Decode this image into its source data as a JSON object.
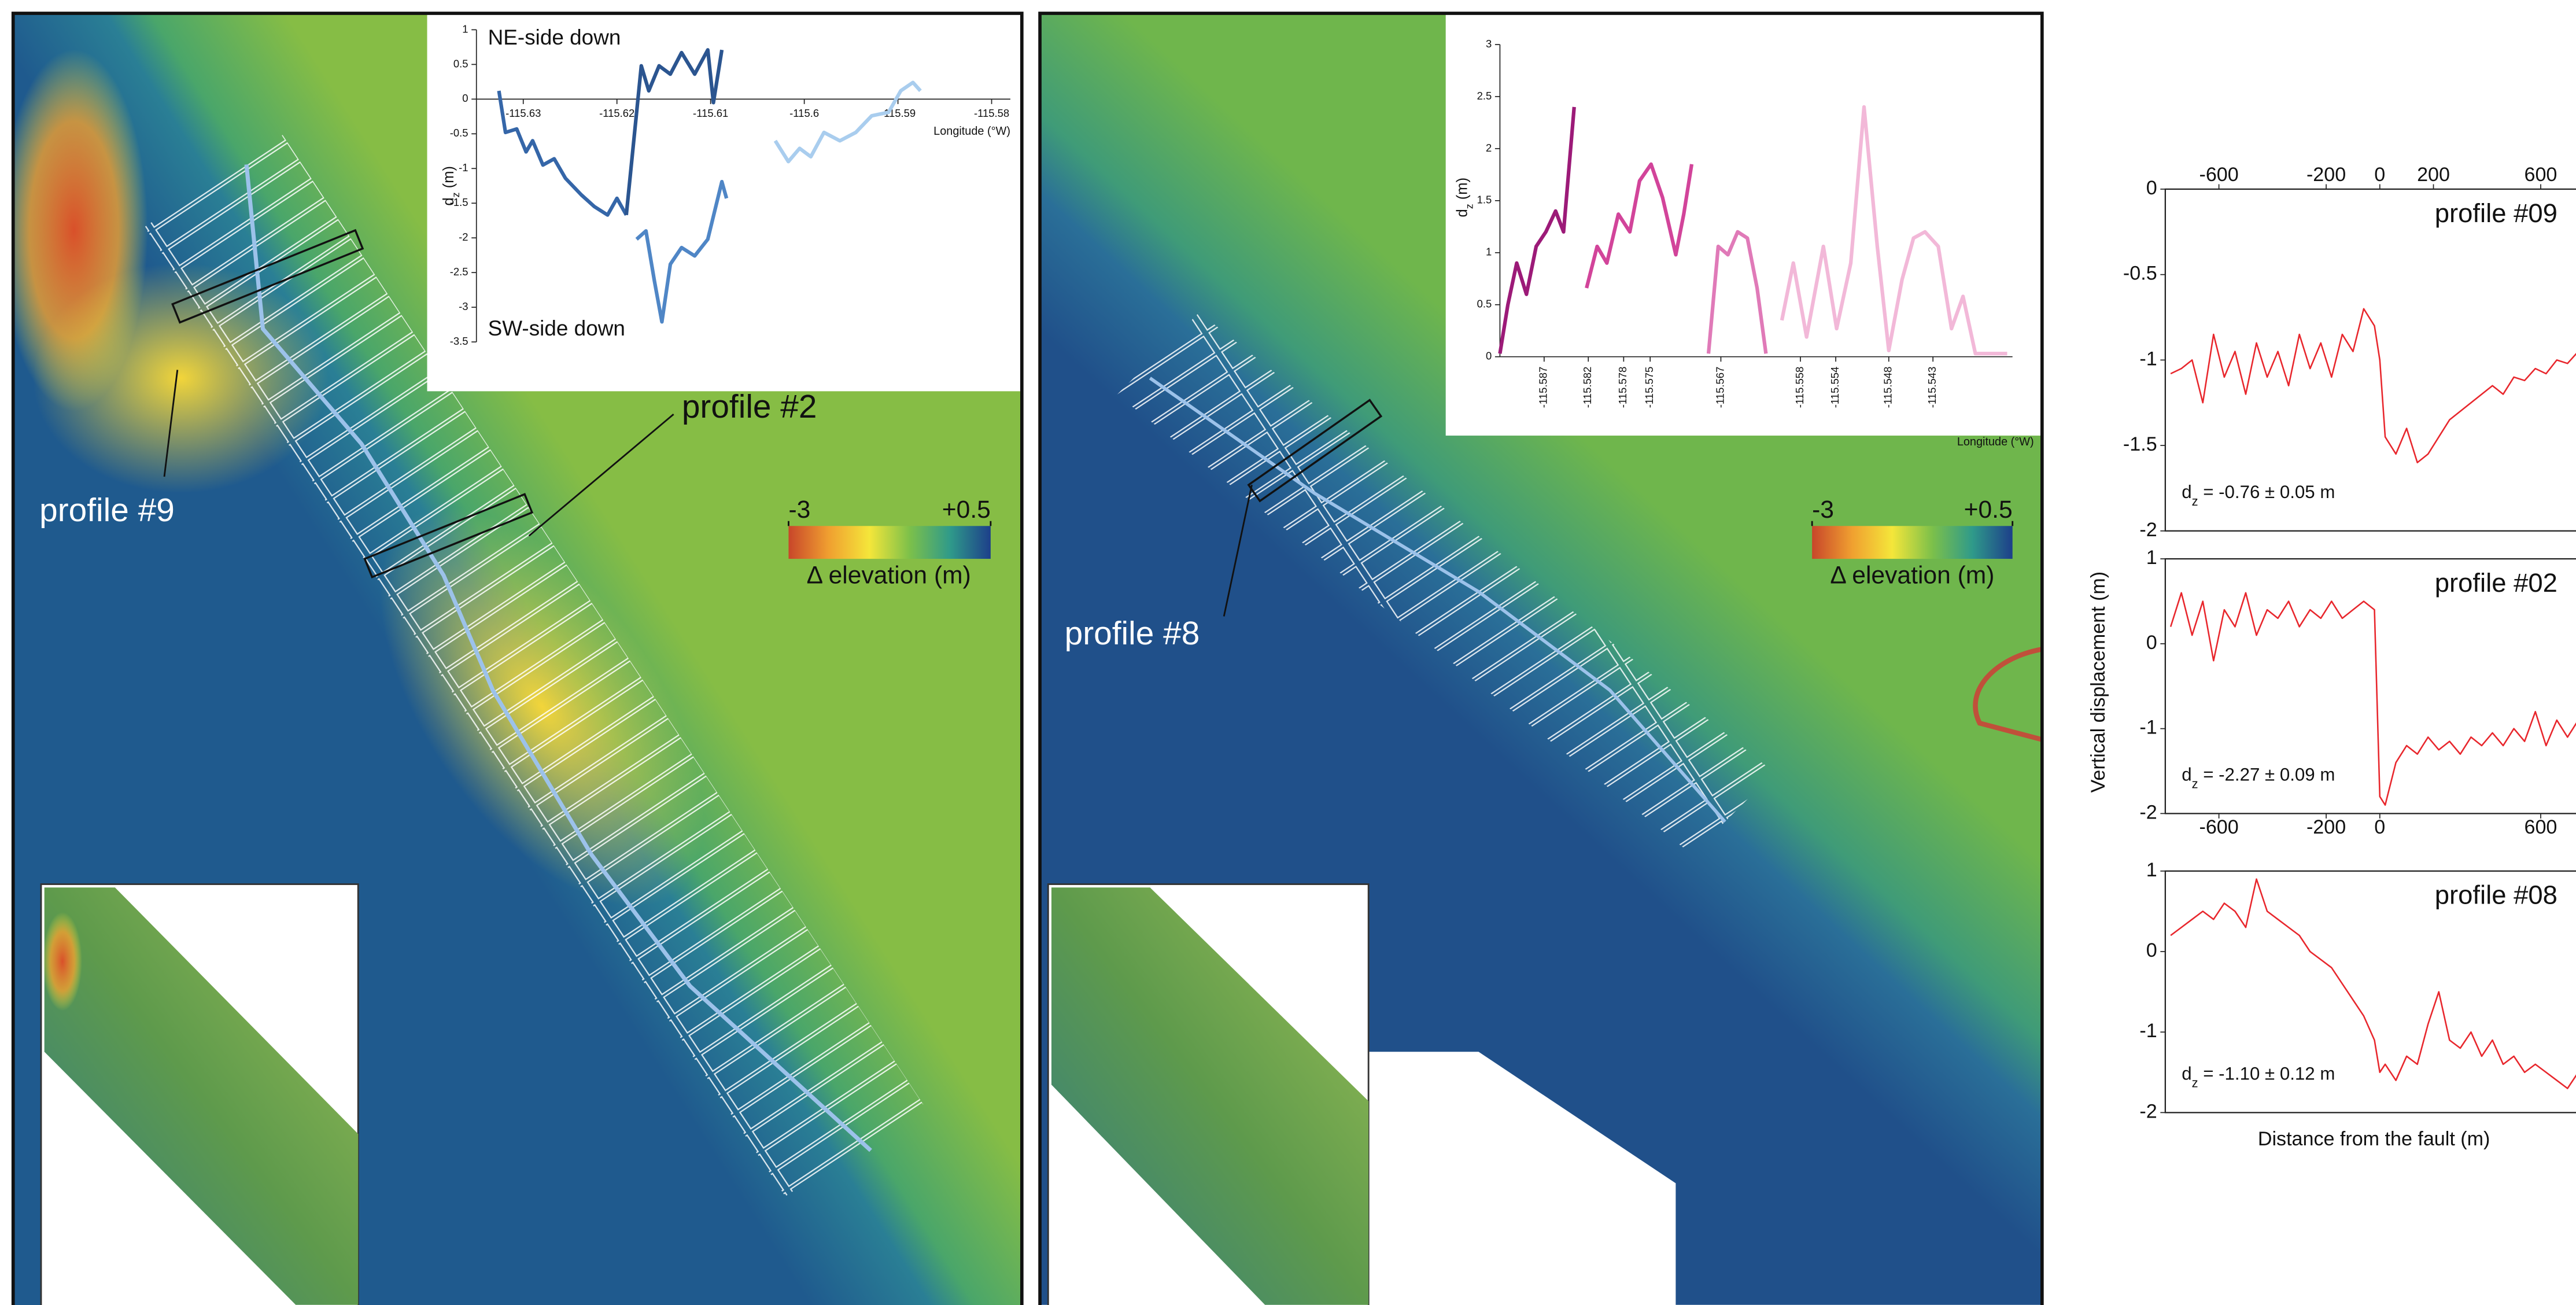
{
  "maps": [
    {
      "profile_labels": [
        "profile #9",
        "profile #2"
      ],
      "colorbar": {
        "ticks": [
          -3,
          {
            "value": 0.5,
            "label": "+0.5"
          }
        ],
        "label": "Δ elevation (m)"
      }
    },
    {
      "profile_labels": [
        "profile #8"
      ],
      "colorbar": {
        "ticks": [
          -3,
          {
            "value": 0.5,
            "label": "+0.5"
          }
        ],
        "label": "Δ elevation (m)"
      }
    }
  ],
  "chart_data": [
    {
      "type": "line",
      "xlabel": "Longitude (°W)",
      "ylabel": {
        "main": "d",
        "sub": "z",
        "unit": " (m)"
      },
      "annotations": [
        "NE-side down",
        "SW-side down"
      ],
      "xlim": [
        -115.635,
        -115.578
      ],
      "xticks": [
        -115.63,
        -115.62,
        -115.61,
        -115.6,
        -115.59,
        -115.58
      ],
      "ylim": [
        -3.5,
        1
      ],
      "yticks": [
        1,
        0.5,
        0,
        -0.5,
        -1,
        -1.5,
        -2,
        -2.5,
        -3,
        -3.5
      ],
      "xaxis": "zero",
      "series": [
        {
          "color": "#3566a8",
          "x": [
            -115.6326,
            -115.6319,
            -115.6307,
            -115.6297,
            -115.629,
            -115.6279,
            -115.6267,
            -115.6255,
            -115.6238,
            -115.6224,
            -115.621,
            -115.62,
            -115.619
          ],
          "values": [
            0.12,
            -0.48,
            -0.43,
            -0.76,
            -0.6,
            -0.95,
            -0.86,
            -1.14,
            -1.38,
            -1.55,
            -1.67,
            -1.43,
            -1.67
          ]
        },
        {
          "color": "#2b5590",
          "x": [
            -115.619,
            -115.6174,
            -115.6166,
            -115.6155,
            -115.6143,
            -115.6131,
            -115.6117,
            -115.6103,
            -115.6097,
            -115.6088
          ],
          "values": [
            -1.67,
            0.48,
            0.12,
            0.48,
            0.36,
            0.67,
            0.36,
            0.71,
            -0.05,
            0.71
          ]
        },
        {
          "color": "#4f86c6",
          "x": [
            -115.6179,
            -115.6169,
            -115.616,
            -115.6152,
            -115.6143,
            -115.6131,
            -115.6117,
            -115.6103,
            -115.6088,
            -115.6083
          ],
          "values": [
            -2.02,
            -1.9,
            -2.62,
            -3.21,
            -2.38,
            -2.14,
            -2.26,
            -2.02,
            -1.19,
            -1.43
          ]
        },
        {
          "color": "#a9cdee",
          "x": [
            -115.6031,
            -115.6017,
            -115.6005,
            -115.5993,
            -115.5979,
            -115.5962,
            -115.5945,
            -115.5928,
            -115.591,
            -115.5897,
            -115.5884,
            -115.5876
          ],
          "values": [
            -0.6,
            -0.9,
            -0.71,
            -0.83,
            -0.48,
            -0.6,
            -0.48,
            -0.24,
            -0.19,
            0.12,
            0.24,
            0.12
          ]
        }
      ]
    },
    {
      "type": "line",
      "xlabel": "Longitude (°W)",
      "ylabel": {
        "main": "d",
        "sub": "z",
        "unit": " (m)"
      },
      "xlim": [
        -115.592,
        -115.534
      ],
      "xticks": [
        -115.587,
        -115.582,
        -115.578,
        -115.575,
        -115.567,
        -115.558,
        -115.554,
        -115.548,
        -115.543
      ],
      "ylim": [
        0,
        3
      ],
      "yticks": [
        0,
        0.5,
        1,
        1.5,
        2,
        2.5,
        3
      ],
      "xaxis": "bottom",
      "series": [
        {
          "color": "#9c1a78",
          "x": [
            -115.592,
            -115.5911,
            -115.5901,
            -115.589,
            -115.5879,
            -115.5868,
            -115.5857,
            -115.5848,
            -115.5836
          ],
          "values": [
            0.03,
            0.5,
            0.9,
            0.6,
            1.06,
            1.2,
            1.4,
            1.2,
            2.4
          ]
        },
        {
          "color": "#d2449a",
          "x": [
            -115.5822,
            -115.581,
            -115.5799,
            -115.5786,
            -115.5773,
            -115.5762,
            -115.5749,
            -115.5736,
            -115.5721,
            -115.5712,
            -115.5703
          ],
          "values": [
            0.66,
            1.06,
            0.9,
            1.37,
            1.2,
            1.69,
            1.85,
            1.53,
            0.98,
            1.37,
            1.85
          ]
        },
        {
          "color": "#e07ab8",
          "x": [
            -115.5684,
            -115.5673,
            -115.5662,
            -115.5651,
            -115.564,
            -115.5629,
            -115.5619
          ],
          "values": [
            0.03,
            1.06,
            0.98,
            1.2,
            1.14,
            0.66,
            0.03
          ]
        },
        {
          "color": "#f2b8d8",
          "x": [
            -115.5601,
            -115.5588,
            -115.5573,
            -115.5554,
            -115.5539,
            -115.5523,
            -115.5508,
            -115.5493,
            -115.548,
            -115.5465,
            -115.5452,
            -115.5439,
            -115.5424,
            -115.5409,
            -115.5396,
            -115.5382,
            -115.5365,
            -115.5346
          ],
          "values": [
            0.35,
            0.9,
            0.19,
            1.06,
            0.27,
            0.9,
            2.4,
            1.06,
            0.06,
            0.74,
            1.14,
            1.2,
            1.06,
            0.27,
            0.58,
            0.03,
            0.03,
            0.03
          ]
        }
      ]
    },
    {
      "type": "line",
      "title": "profile #09",
      "annotation": {
        "main": "d",
        "sub": "z",
        "rest": " = -0.76 ± 0.05 m"
      },
      "xlim": [
        -800,
        750
      ],
      "xticks": [
        -600,
        -200,
        0,
        200,
        600
      ],
      "xaxis": "top",
      "ylim": [
        -2,
        0
      ],
      "yticks": [
        0,
        -0.5,
        -1,
        -1.5,
        -2
      ],
      "x": [
        -780,
        -740,
        -700,
        -660,
        -620,
        -580,
        -540,
        -500,
        -460,
        -420,
        -380,
        -340,
        -300,
        -260,
        -220,
        -180,
        -140,
        -100,
        -60,
        -20,
        0,
        20,
        60,
        100,
        140,
        180,
        220,
        260,
        300,
        340,
        380,
        420,
        460,
        500,
        540,
        580,
        620,
        660,
        700,
        740
      ],
      "series": [
        {
          "color": "#e8262c",
          "values": [
            -1.08,
            -1.05,
            -1.0,
            -1.25,
            -0.85,
            -1.1,
            -0.95,
            -1.2,
            -0.9,
            -1.1,
            -0.95,
            -1.15,
            -0.85,
            -1.05,
            -0.9,
            -1.1,
            -0.85,
            -0.95,
            -0.7,
            -0.8,
            -1.0,
            -1.45,
            -1.55,
            -1.4,
            -1.6,
            -1.55,
            -1.45,
            -1.35,
            -1.3,
            -1.25,
            -1.2,
            -1.15,
            -1.2,
            -1.1,
            -1.12,
            -1.05,
            -1.08,
            -1.0,
            -1.02,
            -0.95
          ]
        }
      ]
    },
    {
      "type": "line",
      "title": "profile #02",
      "annotation": {
        "main": "d",
        "sub": "z",
        "rest": " = -2.27 ± 0.09 m"
      },
      "ylabel": "Vertical displacement (m)",
      "xlim": [
        -800,
        750
      ],
      "xticks": [
        -600,
        -200,
        0,
        600
      ],
      "xaxis": "bottom",
      "ylim": [
        -2,
        1
      ],
      "yticks": [
        1,
        0,
        -1,
        -2
      ],
      "x": [
        -780,
        -740,
        -700,
        -660,
        -620,
        -580,
        -540,
        -500,
        -460,
        -420,
        -380,
        -340,
        -300,
        -260,
        -220,
        -180,
        -140,
        -100,
        -60,
        -20,
        0,
        20,
        60,
        100,
        140,
        180,
        220,
        260,
        300,
        340,
        380,
        420,
        460,
        500,
        540,
        580,
        620,
        660,
        700,
        740
      ],
      "series": [
        {
          "color": "#e8262c",
          "values": [
            0.2,
            0.6,
            0.1,
            0.5,
            -0.2,
            0.4,
            0.2,
            0.6,
            0.1,
            0.4,
            0.3,
            0.5,
            0.2,
            0.4,
            0.3,
            0.5,
            0.3,
            0.4,
            0.5,
            0.4,
            -1.8,
            -1.9,
            -1.4,
            -1.2,
            -1.3,
            -1.1,
            -1.25,
            -1.15,
            -1.3,
            -1.1,
            -1.2,
            -1.05,
            -1.2,
            -1.0,
            -1.15,
            -0.8,
            -1.2,
            -0.9,
            -1.1,
            -0.9
          ]
        }
      ]
    },
    {
      "type": "line",
      "title": "profile #08",
      "annotation": {
        "main": "d",
        "sub": "z",
        "rest": " = -1.10 ± 0.12 m"
      },
      "xlabel": "Distance from the fault (m)",
      "xlim": [
        -800,
        750
      ],
      "xaxis": "bottom",
      "ylim": [
        -2,
        1
      ],
      "yticks": [
        1,
        0,
        -1,
        -2
      ],
      "x": [
        -780,
        -740,
        -700,
        -660,
        -620,
        -580,
        -540,
        -500,
        -460,
        -420,
        -380,
        -340,
        -300,
        -260,
        -220,
        -180,
        -140,
        -100,
        -60,
        -20,
        0,
        20,
        60,
        100,
        140,
        180,
        220,
        260,
        300,
        340,
        380,
        420,
        460,
        500,
        540,
        580,
        620,
        660,
        700,
        740
      ],
      "series": [
        {
          "color": "#e8262c",
          "values": [
            0.2,
            0.3,
            0.4,
            0.5,
            0.4,
            0.6,
            0.5,
            0.3,
            0.9,
            0.5,
            0.4,
            0.3,
            0.2,
            0.0,
            -0.1,
            -0.2,
            -0.4,
            -0.6,
            -0.8,
            -1.1,
            -1.5,
            -1.4,
            -1.6,
            -1.3,
            -1.4,
            -0.9,
            -0.5,
            -1.1,
            -1.2,
            -1.0,
            -1.3,
            -1.1,
            -1.4,
            -1.3,
            -1.5,
            -1.4,
            -1.5,
            -1.6,
            -1.7,
            -1.5
          ]
        }
      ]
    }
  ]
}
